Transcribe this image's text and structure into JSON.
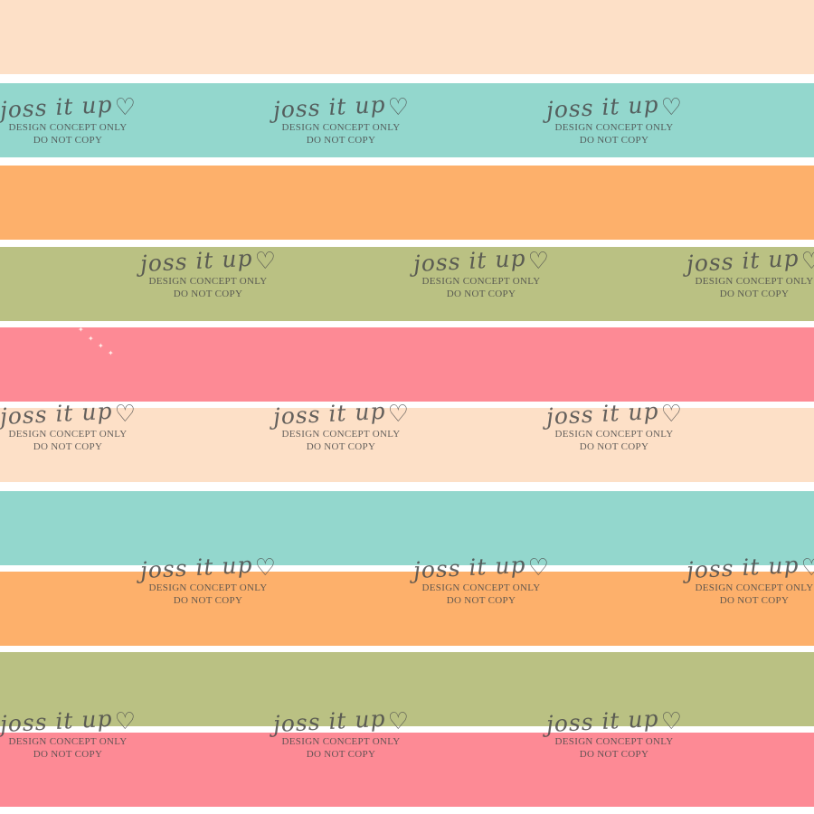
{
  "colors": {
    "peach": "#FDE0C7",
    "teal": "#93D7CD",
    "orange": "#FDB06B",
    "olive": "#BAC183",
    "pink": "#FD8A95",
    "white": "#FFFFFF",
    "watermark": "#4A4A4A"
  },
  "stripes": [
    "peach",
    "teal",
    "orange",
    "olive",
    "pink",
    "peach",
    "teal",
    "orange",
    "olive",
    "pink"
  ],
  "watermark": {
    "brand": "joss it up",
    "heart_icon": "heart-outline-icon",
    "line1": "DESIGN CONCEPT ONLY",
    "line2": "DO NOT COPY"
  },
  "decor": {
    "sparkle_icon": "sparkle-icon"
  }
}
